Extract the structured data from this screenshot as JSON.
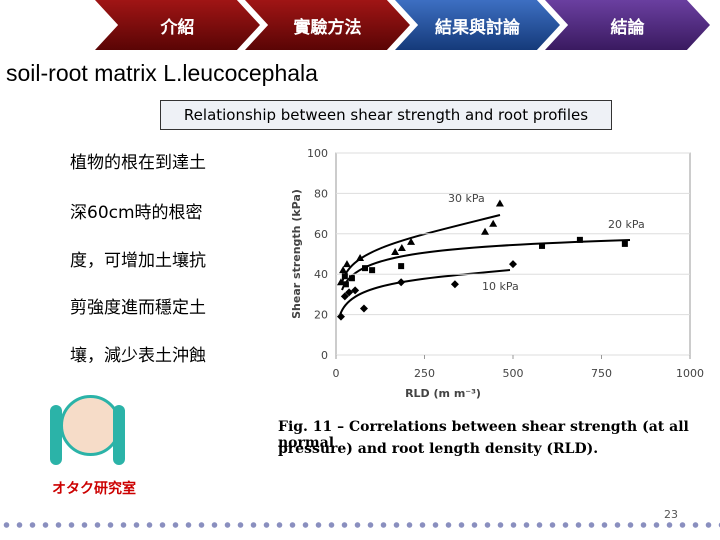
{
  "nav": {
    "tabs": [
      "介紹",
      "實驗方法",
      "結果與討論",
      "結論"
    ]
  },
  "title": "soil-root matrix L.leucocephala",
  "subtitle": "Relationship between shear strength and root profiles",
  "body_lines": [
    "植物的根在到達土",
    "深60cm時的根密",
    "度，可增加土壤抗",
    "剪強度進而穩定土",
    "壤，減少表土沖蝕"
  ],
  "chart_data": {
    "type": "scatter",
    "xlabel": "RLD (m m⁻³)",
    "ylabel": "Shear strength (kPa)",
    "xlim": [
      0,
      1000
    ],
    "ylim": [
      0,
      100
    ],
    "xticks": [
      0,
      250,
      500,
      750,
      1000
    ],
    "yticks": [
      0,
      20,
      40,
      60,
      80,
      100
    ],
    "grid": true,
    "series": [
      {
        "name": "30 kPa",
        "marker": "triangle",
        "color": "#000000",
        "x": [
          14,
          20,
          31,
          68,
          167,
          186,
          212,
          421,
          444,
          463
        ],
        "values": [
          36,
          42,
          45,
          48,
          51,
          53,
          56,
          61,
          65,
          75
        ]
      },
      {
        "name": "20 kPa",
        "marker": "square",
        "color": "#000000",
        "x": [
          25,
          28,
          45,
          82,
          102,
          184,
          582,
          689,
          816
        ],
        "values": [
          39,
          35,
          38,
          43,
          42,
          44,
          54,
          57,
          55
        ]
      },
      {
        "name": "10 kPa",
        "marker": "diamond",
        "color": "#000000",
        "x": [
          14,
          25,
          37,
          54,
          79,
          184,
          336,
          500
        ],
        "values": [
          19,
          29,
          31,
          32,
          23,
          36,
          35,
          45
        ]
      }
    ]
  },
  "caption": [
    "Fig. 11 – Correlations between shear strength (at all normal",
    "pressure) and root length density (RLD)."
  ],
  "logo_label": "オタク研究室",
  "page_number": "23"
}
